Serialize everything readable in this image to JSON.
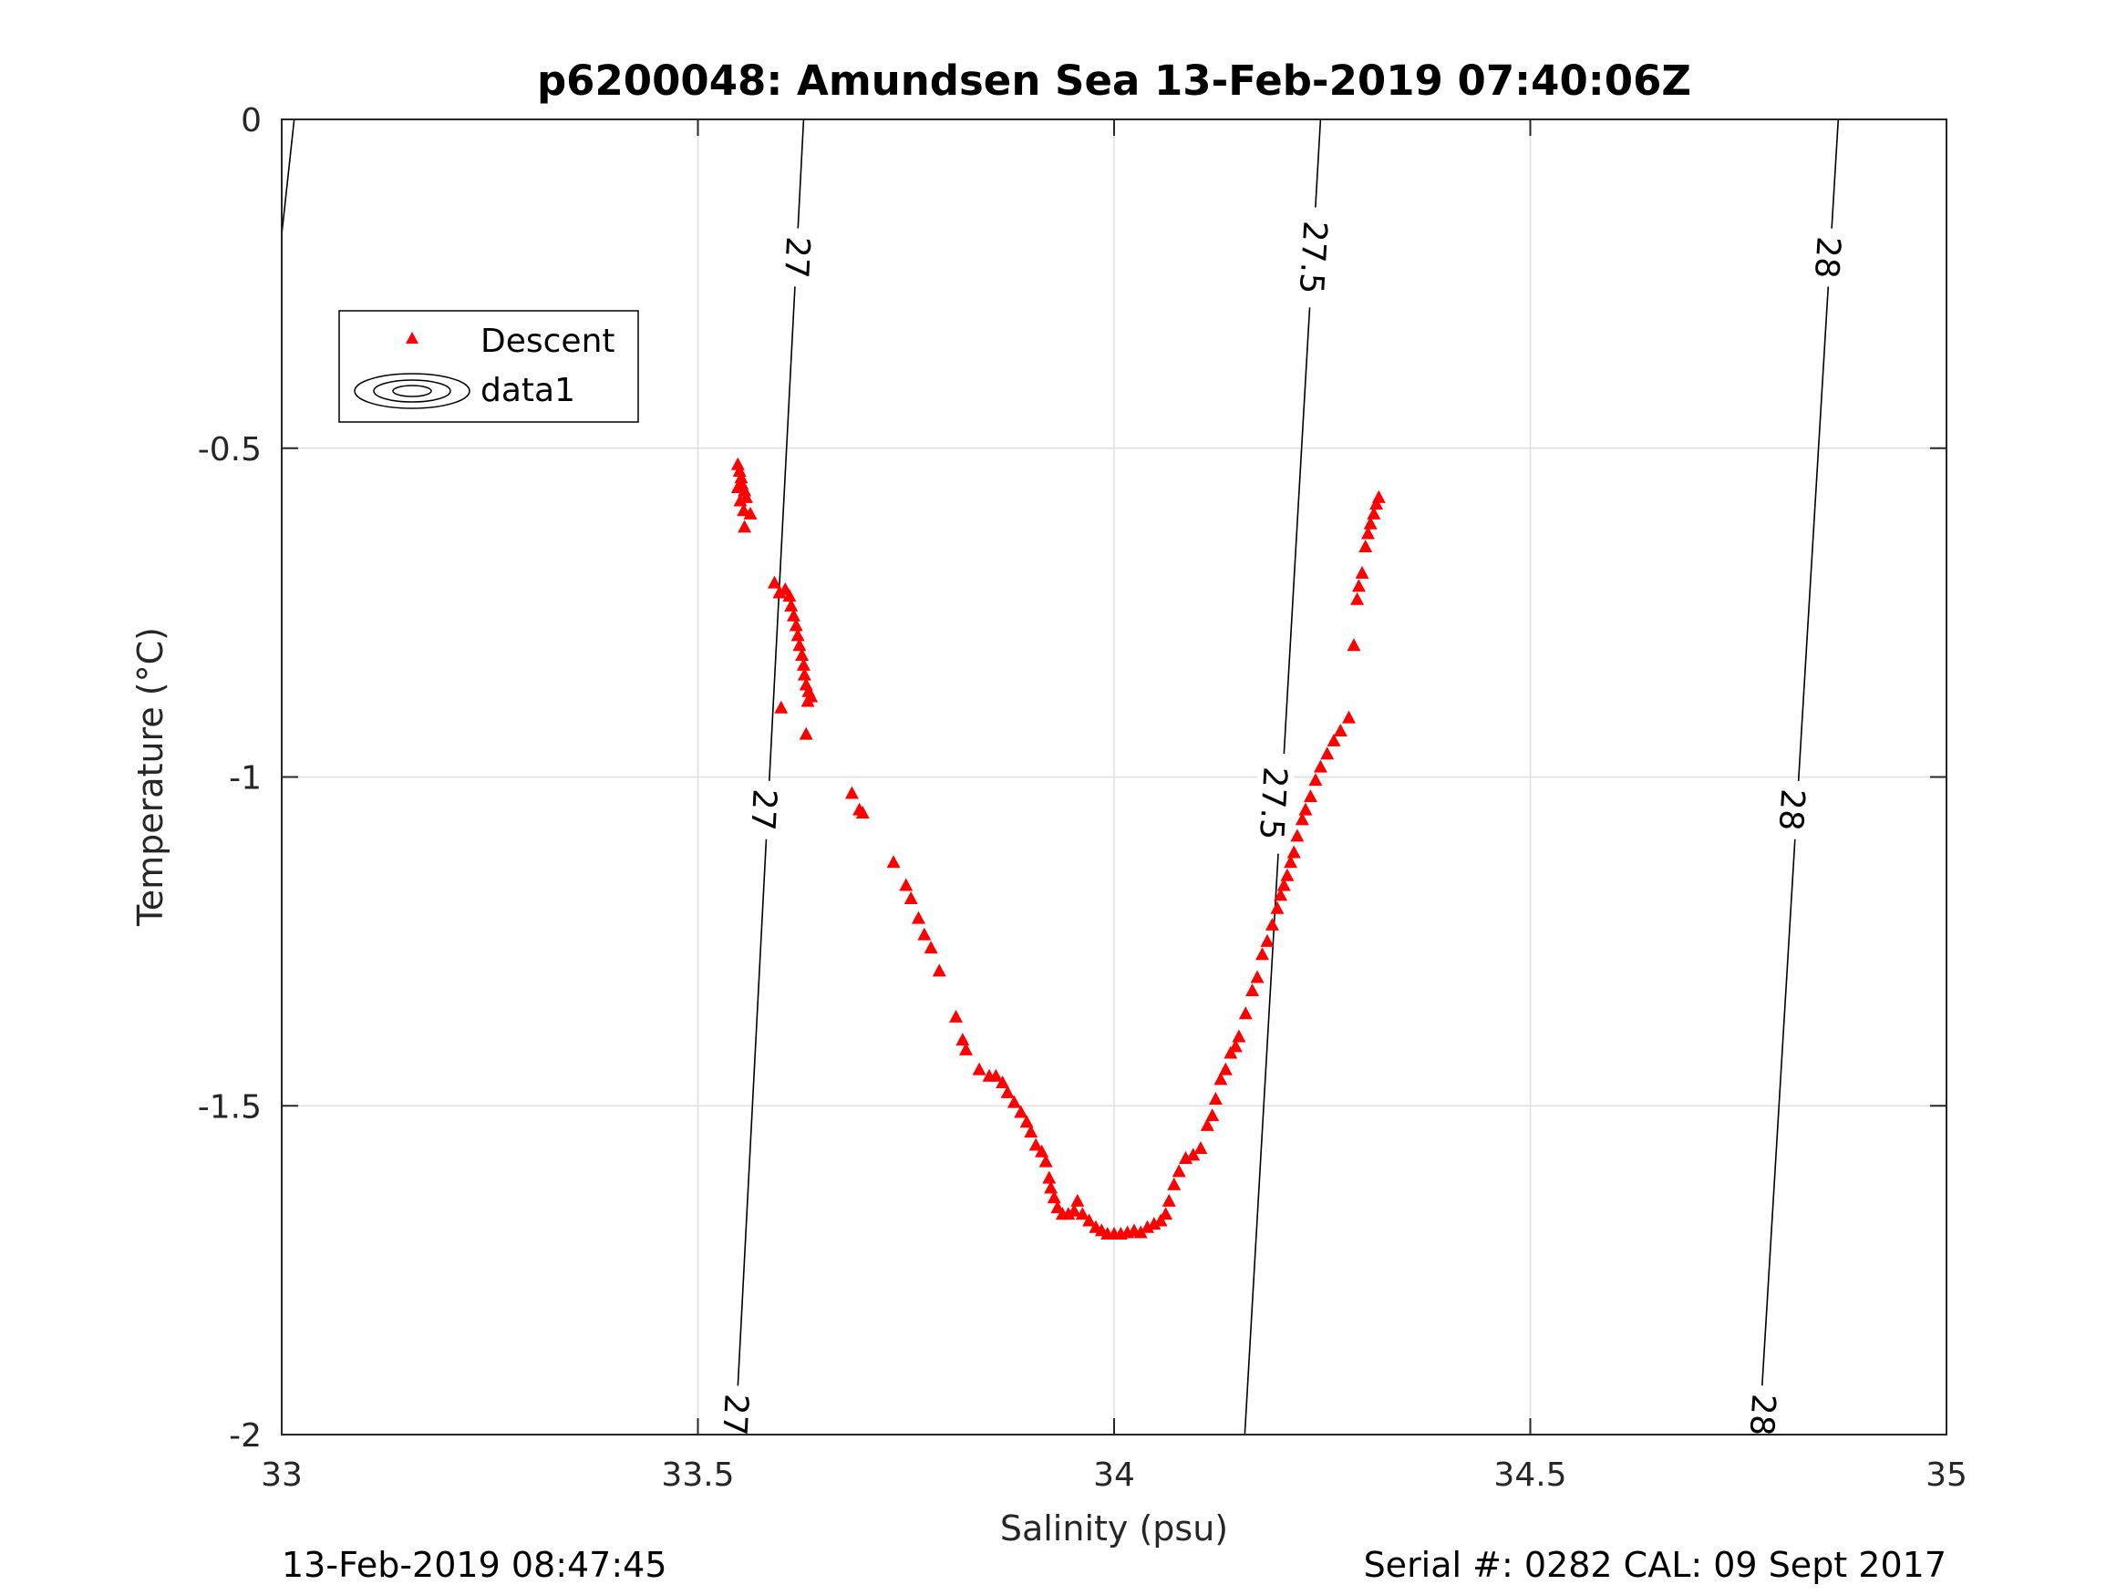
{
  "chart_data": {
    "type": "scatter",
    "title": "p6200048: Amundsen Sea 13-Feb-2019 07:40:06Z",
    "xlabel": "Salinity (psu)",
    "ylabel": "Temperature (°C)",
    "xlim": [
      33,
      35
    ],
    "ylim": [
      -2,
      0
    ],
    "xticks": [
      33,
      33.5,
      34,
      34.5,
      35
    ],
    "xtick_labels": [
      "33",
      "33.5",
      "34",
      "34.5",
      "35"
    ],
    "yticks": [
      -2,
      -1.5,
      -1,
      -0.5,
      0
    ],
    "ytick_labels": [
      "-2",
      "-1.5",
      "-1",
      "-0.5",
      "0"
    ],
    "grid": true,
    "legend": {
      "position": "top-left",
      "entries": [
        {
          "label": "Descent",
          "marker": "triangle",
          "color": "#ff0000"
        },
        {
          "label": "data1",
          "marker": "contour",
          "color": "#000000"
        }
      ]
    },
    "series": [
      {
        "name": "Descent",
        "marker": "triangle",
        "color": "#ff0000",
        "points": [
          [
            33.548,
            -0.525
          ],
          [
            33.55,
            -0.535
          ],
          [
            33.552,
            -0.545
          ],
          [
            33.553,
            -0.555
          ],
          [
            33.548,
            -0.56
          ],
          [
            33.556,
            -0.565
          ],
          [
            33.551,
            -0.58
          ],
          [
            33.558,
            -0.575
          ],
          [
            33.555,
            -0.595
          ],
          [
            33.563,
            -0.6
          ],
          [
            33.556,
            -0.62
          ],
          [
            33.592,
            -0.705
          ],
          [
            33.598,
            -0.72
          ],
          [
            33.605,
            -0.715
          ],
          [
            33.61,
            -0.725
          ],
          [
            33.612,
            -0.74
          ],
          [
            33.615,
            -0.755
          ],
          [
            33.618,
            -0.77
          ],
          [
            33.62,
            -0.785
          ],
          [
            33.622,
            -0.8
          ],
          [
            33.625,
            -0.815
          ],
          [
            33.627,
            -0.83
          ],
          [
            33.628,
            -0.845
          ],
          [
            33.63,
            -0.86
          ],
          [
            33.633,
            -0.87
          ],
          [
            33.636,
            -0.878
          ],
          [
            33.632,
            -0.885
          ],
          [
            33.63,
            -0.935
          ],
          [
            33.6,
            -0.895
          ],
          [
            33.685,
            -1.025
          ],
          [
            33.694,
            -1.05
          ],
          [
            33.698,
            -1.055
          ],
          [
            33.735,
            -1.13
          ],
          [
            33.75,
            -1.165
          ],
          [
            33.756,
            -1.185
          ],
          [
            33.765,
            -1.215
          ],
          [
            33.772,
            -1.24
          ],
          [
            33.78,
            -1.26
          ],
          [
            33.79,
            -1.295
          ],
          [
            33.81,
            -1.365
          ],
          [
            33.818,
            -1.4
          ],
          [
            33.822,
            -1.415
          ],
          [
            33.838,
            -1.445
          ],
          [
            33.85,
            -1.455
          ],
          [
            33.858,
            -1.455
          ],
          [
            33.866,
            -1.465
          ],
          [
            33.872,
            -1.48
          ],
          [
            33.88,
            -1.495
          ],
          [
            33.888,
            -1.51
          ],
          [
            33.895,
            -1.525
          ],
          [
            33.9,
            -1.54
          ],
          [
            33.906,
            -1.56
          ],
          [
            33.913,
            -1.57
          ],
          [
            33.918,
            -1.585
          ],
          [
            33.922,
            -1.61
          ],
          [
            33.924,
            -1.625
          ],
          [
            33.928,
            -1.64
          ],
          [
            33.932,
            -1.655
          ],
          [
            33.938,
            -1.665
          ],
          [
            33.945,
            -1.665
          ],
          [
            33.952,
            -1.66
          ],
          [
            33.956,
            -1.645
          ],
          [
            33.962,
            -1.665
          ],
          [
            33.97,
            -1.675
          ],
          [
            33.978,
            -1.685
          ],
          [
            33.985,
            -1.69
          ],
          [
            33.992,
            -1.695
          ],
          [
            34.0,
            -1.695
          ],
          [
            34.008,
            -1.695
          ],
          [
            34.016,
            -1.693
          ],
          [
            34.024,
            -1.69
          ],
          [
            34.032,
            -1.693
          ],
          [
            34.04,
            -1.685
          ],
          [
            34.048,
            -1.68
          ],
          [
            34.056,
            -1.675
          ],
          [
            34.062,
            -1.665
          ],
          [
            34.066,
            -1.645
          ],
          [
            34.072,
            -1.62
          ],
          [
            34.078,
            -1.6
          ],
          [
            34.086,
            -1.58
          ],
          [
            34.095,
            -1.575
          ],
          [
            34.104,
            -1.565
          ],
          [
            34.112,
            -1.53
          ],
          [
            34.118,
            -1.515
          ],
          [
            34.122,
            -1.49
          ],
          [
            34.128,
            -1.46
          ],
          [
            34.134,
            -1.445
          ],
          [
            34.14,
            -1.42
          ],
          [
            34.146,
            -1.41
          ],
          [
            34.15,
            -1.395
          ],
          [
            34.158,
            -1.36
          ],
          [
            34.166,
            -1.325
          ],
          [
            34.172,
            -1.305
          ],
          [
            34.178,
            -1.27
          ],
          [
            34.184,
            -1.25
          ],
          [
            34.19,
            -1.225
          ],
          [
            34.196,
            -1.2
          ],
          [
            34.2,
            -1.18
          ],
          [
            34.204,
            -1.165
          ],
          [
            34.208,
            -1.15
          ],
          [
            34.212,
            -1.13
          ],
          [
            34.216,
            -1.115
          ],
          [
            34.22,
            -1.09
          ],
          [
            34.226,
            -1.065
          ],
          [
            34.23,
            -1.05
          ],
          [
            34.236,
            -1.03
          ],
          [
            34.242,
            -1.005
          ],
          [
            34.248,
            -0.985
          ],
          [
            34.256,
            -0.965
          ],
          [
            34.264,
            -0.945
          ],
          [
            34.272,
            -0.93
          ],
          [
            34.282,
            -0.91
          ],
          [
            34.288,
            -0.8
          ],
          [
            34.292,
            -0.73
          ],
          [
            34.294,
            -0.71
          ],
          [
            34.298,
            -0.69
          ],
          [
            34.302,
            -0.65
          ],
          [
            34.305,
            -0.63
          ],
          [
            34.308,
            -0.615
          ],
          [
            34.312,
            -0.6
          ],
          [
            34.315,
            -0.585
          ],
          [
            34.318,
            -0.575
          ]
        ]
      },
      {
        "name": "data1",
        "type": "contour",
        "color": "#000000",
        "lines": [
          {
            "level": "27",
            "points": [
              [
                33.0,
                -0.175
              ],
              [
                33.015,
                0.0
              ]
            ],
            "labels": []
          },
          {
            "level": "27",
            "points": [
              [
                33.545,
                -2.0
              ],
              [
                33.627,
                0.0
              ]
            ],
            "labels": [
              {
                "x": 33.546,
                "y": -1.97
              },
              {
                "x": 33.58,
                "y": -1.05
              },
              {
                "x": 33.62,
                "y": -0.21
              }
            ]
          },
          {
            "level": "27.5",
            "points": [
              [
                34.157,
                -2.0
              ],
              [
                34.248,
                0.0
              ]
            ],
            "labels": [
              {
                "x": 34.192,
                "y": -1.04
              },
              {
                "x": 34.24,
                "y": -0.21
              }
            ]
          },
          {
            "level": "28",
            "points": [
              [
                34.775,
                -2.0
              ],
              [
                34.87,
                0.0
              ]
            ],
            "labels": [
              {
                "x": 34.78,
                "y": -1.97
              },
              {
                "x": 34.815,
                "y": -1.05
              },
              {
                "x": 34.858,
                "y": -0.21
              }
            ]
          }
        ]
      }
    ]
  },
  "footer": {
    "left": "13-Feb-2019 08:47:45",
    "right": "Serial #: 0282  CAL: 09 Sept 2017"
  }
}
